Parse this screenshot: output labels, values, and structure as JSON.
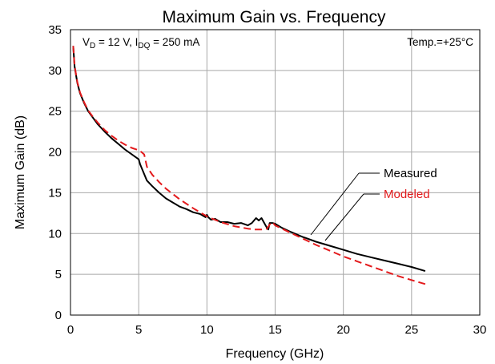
{
  "chart_data": {
    "type": "line",
    "title": "Maximum Gain vs. Frequency",
    "xlabel": "Frequency (GHz)",
    "ylabel": "Maximum Gain (dB)",
    "xlim": [
      0,
      30
    ],
    "ylim": [
      0,
      35
    ],
    "xticks": [
      "0",
      "5",
      "10",
      "15",
      "20",
      "25",
      "30"
    ],
    "yticks": [
      "0",
      "5",
      "10",
      "15",
      "20",
      "25",
      "30",
      "35"
    ],
    "grid": true,
    "annotations": {
      "conditions": {
        "v": "V",
        "v_sub": "D",
        "v_text": " = 12 V, I",
        "i_sub": "DQ",
        "i_text": " = 250 mA"
      },
      "temperature": "Temp.=+25°C"
    },
    "series": [
      {
        "name": "Measured",
        "color": "#000000",
        "style": "solid",
        "x": [
          0.2,
          0.3,
          0.5,
          0.7,
          1.0,
          1.3,
          1.6,
          2.0,
          2.5,
          3.0,
          3.5,
          4.0,
          4.5,
          5.0,
          5.1,
          5.3,
          5.6,
          6.0,
          6.5,
          7.0,
          7.5,
          8.0,
          8.5,
          9.0,
          9.5,
          9.9,
          10.0,
          10.1,
          10.3,
          10.6,
          11.0,
          11.5,
          12.0,
          12.5,
          13.0,
          13.3,
          13.6,
          13.8,
          14.0,
          14.2,
          14.4,
          14.5,
          14.6,
          14.8,
          15.0,
          15.5,
          16.0,
          17.0,
          18.0,
          19.0,
          20.0,
          21.0,
          22.0,
          23.0,
          24.0,
          25.0,
          26.0
        ],
        "y": [
          33.0,
          30.5,
          28.5,
          27.2,
          26.0,
          25.0,
          24.3,
          23.4,
          22.5,
          21.7,
          21.0,
          20.3,
          19.7,
          19.1,
          18.5,
          17.7,
          16.5,
          15.8,
          15.0,
          14.3,
          13.8,
          13.3,
          13.0,
          12.6,
          12.4,
          12.0,
          12.3,
          12.0,
          11.7,
          11.8,
          11.4,
          11.4,
          11.2,
          11.3,
          11.0,
          11.3,
          11.9,
          11.6,
          11.9,
          11.3,
          10.7,
          10.5,
          11.3,
          11.3,
          11.2,
          10.7,
          10.3,
          9.6,
          9.0,
          8.5,
          8.0,
          7.5,
          7.1,
          6.7,
          6.3,
          5.9,
          5.4
        ]
      },
      {
        "name": "Modeled",
        "color": "#e31a1c",
        "style": "dashed",
        "x": [
          0.2,
          0.3,
          0.5,
          0.7,
          1.0,
          1.3,
          1.6,
          2.0,
          2.5,
          3.0,
          3.5,
          4.0,
          4.5,
          5.0,
          5.2,
          5.4,
          5.6,
          6.0,
          6.5,
          7.0,
          8.0,
          9.0,
          10.0,
          11.0,
          12.0,
          13.0,
          13.5,
          14.0,
          14.4,
          14.6,
          14.8,
          15.0,
          16.0,
          17.0,
          18.0,
          19.0,
          20.0,
          21.0,
          22.0,
          23.0,
          24.0,
          25.0,
          26.0
        ],
        "y": [
          33.0,
          30.6,
          28.6,
          27.3,
          26.1,
          25.1,
          24.4,
          23.6,
          22.7,
          22.0,
          21.4,
          20.9,
          20.5,
          20.2,
          20.0,
          19.7,
          18.2,
          17.2,
          16.3,
          15.5,
          14.2,
          13.1,
          12.1,
          11.4,
          10.9,
          10.6,
          10.5,
          10.5,
          10.6,
          11.1,
          11.4,
          11.0,
          10.2,
          9.4,
          8.6,
          7.9,
          7.2,
          6.6,
          6.0,
          5.4,
          4.8,
          4.3,
          3.8
        ]
      }
    ],
    "legend": {
      "placement": "right",
      "items": [
        {
          "label": "Measured",
          "color": "#000000"
        },
        {
          "label": "Modeled",
          "color": "#e31a1c"
        }
      ]
    }
  }
}
